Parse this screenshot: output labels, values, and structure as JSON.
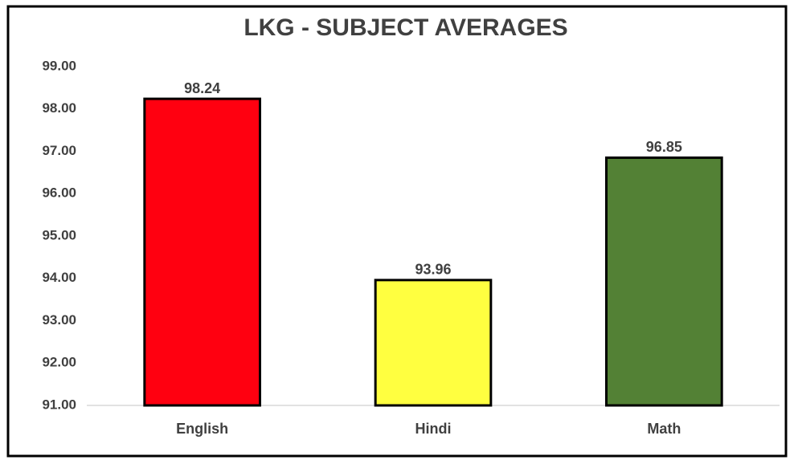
{
  "chart_data": {
    "type": "bar",
    "title": "LKG - SUBJECT AVERAGES",
    "categories": [
      "English",
      "Hindi",
      "Math"
    ],
    "values": [
      98.24,
      93.96,
      96.85
    ],
    "colors": [
      "#ff0010",
      "#ffff40",
      "#538135"
    ],
    "ylim": [
      91,
      99
    ],
    "yticks": [
      {
        "value": 91,
        "label": "91.00"
      },
      {
        "value": 92,
        "label": "92.00"
      },
      {
        "value": 93,
        "label": "93.00"
      },
      {
        "value": 94,
        "label": "94.00"
      },
      {
        "value": 95,
        "label": "95.00"
      },
      {
        "value": 96,
        "label": "96.00"
      },
      {
        "value": 97,
        "label": "97.00"
      },
      {
        "value": 98,
        "label": "98.00"
      },
      {
        "value": 99,
        "label": "99.00"
      }
    ],
    "grid": false
  }
}
